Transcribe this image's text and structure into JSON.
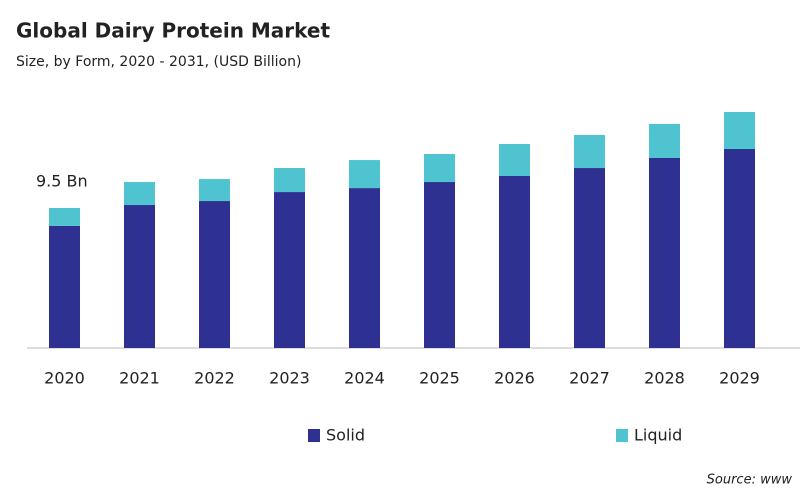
{
  "chart_data": {
    "type": "bar",
    "stacked": true,
    "title": "Global Dairy Protein Market",
    "subtitle": "Size, by Form, 2020 - 2031, (USD Billion)",
    "annotation": "9.5 Bn",
    "source": "Source: www",
    "categories": [
      "2020",
      "2021",
      "2022",
      "2023",
      "2024",
      "2025",
      "2026",
      "2027",
      "2028",
      "2029"
    ],
    "series": [
      {
        "name": "Solid",
        "color": "#2e3192",
        "values": [
          8.28,
          9.7,
          9.97,
          10.58,
          10.85,
          11.26,
          11.67,
          12.21,
          12.89,
          13.5
        ]
      },
      {
        "name": "Liquid",
        "color": "#4fc3cf",
        "values": [
          1.22,
          1.56,
          1.49,
          1.63,
          1.9,
          1.9,
          2.17,
          2.24,
          2.31,
          2.51
        ]
      }
    ]
  }
}
